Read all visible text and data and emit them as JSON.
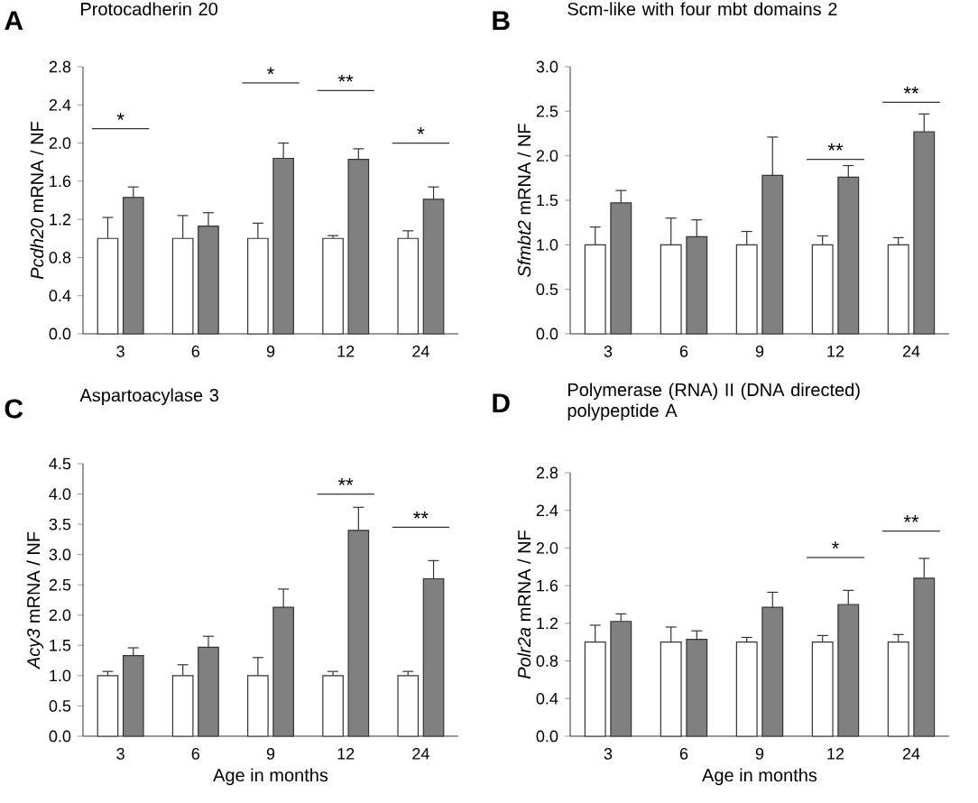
{
  "chart_data": [
    {
      "type": "bar",
      "title": "Protocadherin 20",
      "ylabel": "*Pcdh20* mRNA / NF",
      "categories": [
        "3",
        "6",
        "9",
        "12",
        "24"
      ],
      "series": [
        {
          "color": "#ffffff",
          "values": [
            1.0,
            1.0,
            1.0,
            1.0,
            1.0
          ],
          "errors": [
            0.22,
            0.24,
            0.16,
            0.03,
            0.08
          ]
        },
        {
          "color": "#808080",
          "values": [
            1.43,
            1.13,
            1.84,
            1.83,
            1.41
          ],
          "errors": [
            0.11,
            0.14,
            0.16,
            0.11,
            0.13
          ]
        }
      ],
      "ylim": [
        0,
        2.8
      ],
      "yticks": [
        {
          "value": 0,
          "label": "0.0"
        },
        {
          "value": 0.4,
          "label": "0.4"
        },
        {
          "value": 0.8,
          "label": "0.8"
        },
        {
          "value": 1.2,
          "label": "1.2"
        },
        {
          "value": 1.6,
          "label": "1.6"
        },
        {
          "value": 2.0,
          "label": "2.0"
        },
        {
          "value": 2.4,
          "label": "2.4"
        },
        {
          "value": 2.8,
          "label": "2.8"
        }
      ],
      "annotations": [
        "A",
        "*",
        "*",
        "**",
        "*"
      ]
    },
    {
      "type": "bar",
      "title": "Scm-like with four mbt domains 2",
      "ylabel": "*Sfmbt2* mRNA / NF",
      "categories": [
        "3",
        "6",
        "9",
        "12",
        "24"
      ],
      "series": [
        {
          "color": "#ffffff",
          "values": [
            1.0,
            1.0,
            1.0,
            1.0,
            1.0
          ],
          "errors": [
            0.2,
            0.3,
            0.15,
            0.1,
            0.08
          ]
        },
        {
          "color": "#808080",
          "values": [
            1.47,
            1.09,
            1.78,
            1.76,
            2.27
          ],
          "errors": [
            0.14,
            0.19,
            0.43,
            0.13,
            0.2
          ]
        }
      ],
      "ylim": [
        0,
        3.0
      ],
      "yticks": [
        {
          "value": 0,
          "label": "0.0"
        },
        {
          "value": 0.5,
          "label": "0.5"
        },
        {
          "value": 1.0,
          "label": "1.0"
        },
        {
          "value": 1.5,
          "label": "1.5"
        },
        {
          "value": 2.0,
          "label": "2.0"
        },
        {
          "value": 2.5,
          "label": "2.5"
        },
        {
          "value": 3.0,
          "label": "3.0"
        }
      ],
      "annotations": [
        "B",
        "**",
        "**"
      ]
    },
    {
      "type": "bar",
      "title": "Aspartoacylase 3",
      "xlabel": "Age in months",
      "ylabel": "*Acy3* mRNA / NF",
      "categories": [
        "3",
        "6",
        "9",
        "12",
        "24"
      ],
      "series": [
        {
          "color": "#ffffff",
          "values": [
            1.0,
            1.0,
            1.0,
            1.0,
            1.0
          ],
          "errors": [
            0.07,
            0.18,
            0.3,
            0.07,
            0.07
          ]
        },
        {
          "color": "#808080",
          "values": [
            1.33,
            1.47,
            2.13,
            3.4,
            2.6
          ],
          "errors": [
            0.13,
            0.18,
            0.3,
            0.38,
            0.3
          ]
        }
      ],
      "ylim": [
        0,
        4.5
      ],
      "yticks": [
        {
          "value": 0,
          "label": "0.0"
        },
        {
          "value": 0.5,
          "label": "0.5"
        },
        {
          "value": 1.0,
          "label": "1.0"
        },
        {
          "value": 1.5,
          "label": "1.5"
        },
        {
          "value": 2.0,
          "label": "2.0"
        },
        {
          "value": 2.5,
          "label": "2.5"
        },
        {
          "value": 3.0,
          "label": "3.0"
        },
        {
          "value": 3.5,
          "label": "3.5"
        },
        {
          "value": 4.0,
          "label": "4.0"
        },
        {
          "value": 4.5,
          "label": "4.5"
        }
      ],
      "annotations": [
        "C",
        "**",
        "**"
      ]
    },
    {
      "type": "bar",
      "title": "Polymerase (RNA) II (DNA directed) polypeptide A",
      "xlabel": "Age in months",
      "ylabel": "*Polr2a* mRNA / NF",
      "categories": [
        "3",
        "6",
        "9",
        "12",
        "24"
      ],
      "series": [
        {
          "color": "#ffffff",
          "values": [
            1.0,
            1.0,
            1.0,
            1.0,
            1.0
          ],
          "errors": [
            0.18,
            0.16,
            0.05,
            0.07,
            0.08
          ]
        },
        {
          "color": "#808080",
          "values": [
            1.22,
            1.03,
            1.37,
            1.4,
            1.68
          ],
          "errors": [
            0.08,
            0.09,
            0.16,
            0.15,
            0.21
          ]
        }
      ],
      "ylim": [
        0,
        2.8
      ],
      "yticks": [
        {
          "value": 0,
          "label": "0.0"
        },
        {
          "value": 0.4,
          "label": "0.4"
        },
        {
          "value": 0.8,
          "label": "0.8"
        },
        {
          "value": 1.2,
          "label": "1.2"
        },
        {
          "value": 1.6,
          "label": "1.6"
        },
        {
          "value": 2.0,
          "label": "2.0"
        },
        {
          "value": 2.4,
          "label": "2.4"
        },
        {
          "value": 2.8,
          "label": "2.8"
        }
      ],
      "annotations": [
        "D",
        "*",
        "**"
      ]
    }
  ]
}
